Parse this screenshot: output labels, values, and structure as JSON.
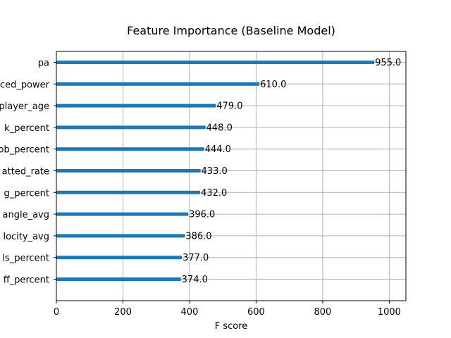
{
  "chart_data": {
    "type": "bar",
    "orientation": "horizontal",
    "title": "Feature Importance (Baseline Model)",
    "xlabel": "F score",
    "ylabel": "",
    "xlim": [
      0,
      1050
    ],
    "x_ticks": [
      0,
      200,
      400,
      600,
      800,
      1000
    ],
    "grid": true,
    "bar_color": "#1f77b4",
    "categories": [
      "pa",
      "ced_power",
      "player_age",
      "k_percent",
      "ob_percent",
      "atted_rate",
      "g_percent",
      "angle_avg",
      "locity_avg",
      "ls_percent",
      "ff_percent"
    ],
    "values": [
      955.0,
      610.0,
      479.0,
      448.0,
      444.0,
      433.0,
      432.0,
      396.0,
      386.0,
      377.0,
      374.0
    ],
    "value_labels": [
      "955.0",
      "610.0",
      "479.0",
      "448.0",
      "444.0",
      "433.0",
      "432.0",
      "396.0",
      "386.0",
      "377.0",
      "374.0"
    ]
  }
}
